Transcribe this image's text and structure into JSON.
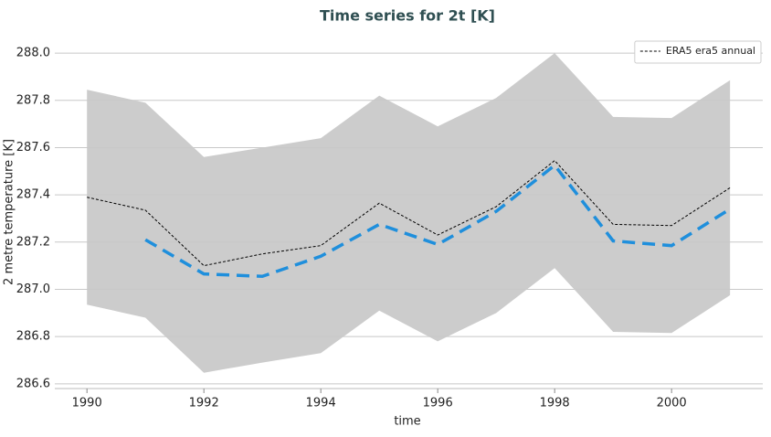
{
  "chart_data": {
    "type": "line",
    "title": "Time series for 2t [K]",
    "x_label": "time",
    "y_label": "2 metre temperature [K]",
    "x": [
      1990,
      1991,
      1992,
      1993,
      1994,
      1995,
      1996,
      1997,
      1998,
      1999,
      2000,
      2001
    ],
    "xlim": [
      1989.45,
      2001.56
    ],
    "xticks": [
      1990,
      1992,
      1994,
      1996,
      1998,
      2000
    ],
    "ylim": [
      286.58,
      288.07
    ],
    "yticks": [
      286.6,
      286.8,
      {
        "value": 287,
        "label": "287.0"
      },
      287.2,
      287.4,
      287.6,
      287.8,
      {
        "value": 288,
        "label": "288.0"
      }
    ],
    "grid": true,
    "legend_position": "upper right",
    "band": {
      "color": "#cccccc",
      "upper": [
        287.845,
        287.79,
        287.56,
        287.6,
        287.64,
        287.82,
        287.69,
        287.81,
        288.0,
        287.73,
        287.725,
        287.885
      ],
      "lower": [
        286.935,
        286.88,
        286.647,
        286.69,
        286.73,
        286.91,
        286.78,
        286.9,
        287.09,
        286.82,
        286.815,
        286.975
      ]
    },
    "series": [
      {
        "name": "ERA5 era5 annual",
        "color": "#000000",
        "values": [
          287.39,
          287.335,
          287.1,
          287.15,
          287.185,
          287.365,
          287.23,
          287.35,
          287.545,
          287.275,
          287.27,
          287.43
        ]
      },
      {
        "color": "#1f8fdc",
        "values": [
          null,
          287.21,
          287.065,
          287.055,
          287.14,
          287.275,
          287.19,
          287.33,
          287.525,
          287.205,
          287.185,
          287.34
        ]
      }
    ]
  }
}
